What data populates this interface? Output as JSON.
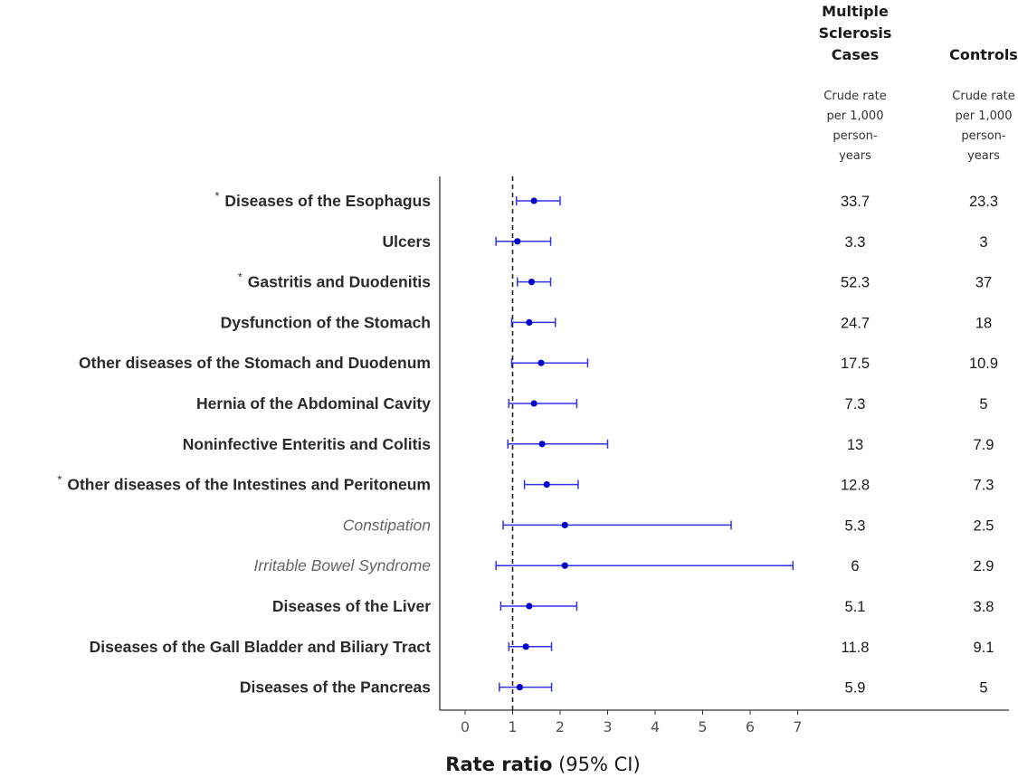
{
  "chart_data": {
    "type": "forest",
    "xlabel_bold": "Rate ratio",
    "xlabel_rest": "(95% CI)",
    "xlim": [
      -0.5,
      7.5
    ],
    "xticks": [
      0,
      1,
      2,
      3,
      4,
      5,
      6,
      7
    ],
    "reference_line": 1,
    "point_color": "#0000cc",
    "line_color": "#3333ee",
    "columns": [
      {
        "header": [
          "Multiple",
          "Sclerosis",
          "Cases"
        ],
        "subheader": [
          "Crude rate",
          "per 1,000",
          "person-",
          "years"
        ]
      },
      {
        "header": [
          "Controls"
        ],
        "subheader": [
          "Crude rate",
          "per 1,000",
          "person-",
          "years"
        ]
      }
    ],
    "rows": [
      {
        "label": "Diseases of the Esophagus",
        "star": true,
        "italic": false,
        "rr": 1.45,
        "lo": 1.08,
        "hi": 2.0,
        "ms_rate": "33.7",
        "ctrl_rate": "23.3"
      },
      {
        "label": "Ulcers",
        "star": false,
        "italic": false,
        "rr": 1.1,
        "lo": 0.65,
        "hi": 1.8,
        "ms_rate": "3.3",
        "ctrl_rate": "3"
      },
      {
        "label": "Gastritis and Duodenitis",
        "star": true,
        "italic": false,
        "rr": 1.4,
        "lo": 1.1,
        "hi": 1.8,
        "ms_rate": "52.3",
        "ctrl_rate": "37"
      },
      {
        "label": "Dysfunction of the Stomach",
        "star": false,
        "italic": false,
        "rr": 1.35,
        "lo": 0.98,
        "hi": 1.9,
        "ms_rate": "24.7",
        "ctrl_rate": "18"
      },
      {
        "label": "Other diseases of the Stomach and Duodenum",
        "star": false,
        "italic": false,
        "rr": 1.6,
        "lo": 0.98,
        "hi": 2.58,
        "ms_rate": "17.5",
        "ctrl_rate": "10.9"
      },
      {
        "label": "Hernia of the Abdominal Cavity",
        "star": false,
        "italic": false,
        "rr": 1.45,
        "lo": 0.92,
        "hi": 2.35,
        "ms_rate": "7.3",
        "ctrl_rate": "5"
      },
      {
        "label": "Noninfective Enteritis and Colitis",
        "star": false,
        "italic": false,
        "rr": 1.62,
        "lo": 0.9,
        "hi": 3.0,
        "ms_rate": "13",
        "ctrl_rate": "7.9"
      },
      {
        "label": "Other diseases of the Intestines and Peritoneum",
        "star": true,
        "italic": false,
        "rr": 1.72,
        "lo": 1.25,
        "hi": 2.38,
        "ms_rate": "12.8",
        "ctrl_rate": "7.3"
      },
      {
        "label": "Constipation",
        "star": false,
        "italic": true,
        "rr": 2.1,
        "lo": 0.8,
        "hi": 5.6,
        "ms_rate": "5.3",
        "ctrl_rate": "2.5"
      },
      {
        "label": "Irritable Bowel Syndrome",
        "star": false,
        "italic": true,
        "rr": 2.1,
        "lo": 0.65,
        "hi": 6.9,
        "ms_rate": "6",
        "ctrl_rate": "2.9"
      },
      {
        "label": "Diseases of the Liver",
        "star": false,
        "italic": false,
        "rr": 1.35,
        "lo": 0.75,
        "hi": 2.35,
        "ms_rate": "5.1",
        "ctrl_rate": "3.8"
      },
      {
        "label": "Diseases of the Gall Bladder and Biliary Tract",
        "star": false,
        "italic": false,
        "rr": 1.28,
        "lo": 0.92,
        "hi": 1.82,
        "ms_rate": "11.8",
        "ctrl_rate": "9.1"
      },
      {
        "label": "Diseases of the Pancreas",
        "star": false,
        "italic": false,
        "rr": 1.15,
        "lo": 0.72,
        "hi": 1.82,
        "ms_rate": "5.9",
        "ctrl_rate": "5"
      }
    ]
  }
}
